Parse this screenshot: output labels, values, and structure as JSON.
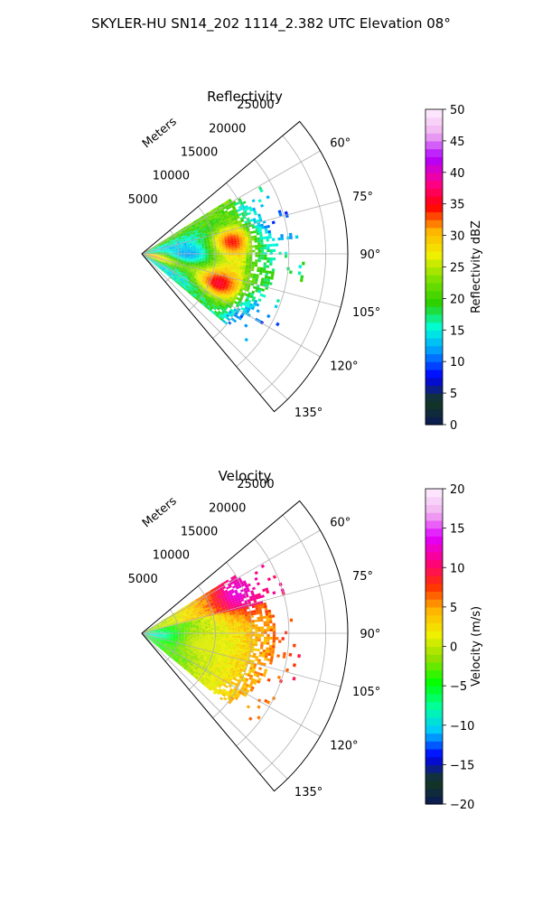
{
  "figure": {
    "title": "SKYLER-HU  SN14_202  1114_2.382 UTC Elevation 08°"
  },
  "chart_data": [
    {
      "type": "heatmap",
      "title": "Reflectivity",
      "projection": "polar-sector",
      "radial_label": "Meters",
      "radial_ticks": [
        5000,
        10000,
        15000,
        20000,
        25000
      ],
      "r_max": 28000,
      "radial_tick_labels": [
        "5000",
        "10000",
        "15000",
        "20000",
        "25000"
      ],
      "angle_range_deg": [
        50,
        140
      ],
      "angle_ticks": [
        60,
        75,
        90,
        105,
        120,
        135
      ],
      "angle_tick_labels": [
        "60°",
        "75°",
        "90°",
        "105°",
        "120°",
        "135°"
      ],
      "grid": true,
      "data_extent": {
        "azimuth_deg": [
          58,
          130
        ],
        "range_m": [
          0,
          18000
        ]
      },
      "field_regions": [
        {
          "azimuth_deg": 82,
          "range_m": 12000,
          "value": 35
        },
        {
          "azimuth_deg": 110,
          "range_m": 11000,
          "value": 36
        },
        {
          "azimuth_deg": 100,
          "range_m": 1500,
          "value": 33
        },
        {
          "azimuth_deg": 90,
          "range_m": 6000,
          "value": 12
        }
      ],
      "colorbar": {
        "label": "Reflectivity dBZ",
        "min": 0,
        "max": 50,
        "ticks": [
          0,
          5,
          10,
          15,
          20,
          25,
          30,
          35,
          40,
          45,
          50
        ],
        "tick_labels": [
          "0",
          "5",
          "10",
          "15",
          "20",
          "25",
          "30",
          "35",
          "40",
          "45",
          "50"
        ],
        "stops": [
          "#0b1a55",
          "#143a1e",
          "#0000ff",
          "#0096ff",
          "#00ffdc",
          "#2ad000",
          "#7fe000",
          "#f0f000",
          "#ffb400",
          "#ff0000",
          "#ff0090",
          "#b000ff",
          "#f0b0f0",
          "#fff0ff"
        ]
      }
    },
    {
      "type": "heatmap",
      "title": "Velocity",
      "projection": "polar-sector",
      "radial_label": "Meters",
      "radial_ticks": [
        5000,
        10000,
        15000,
        20000,
        25000
      ],
      "r_max": 28000,
      "radial_tick_labels": [
        "5000",
        "10000",
        "15000",
        "20000",
        "25000"
      ],
      "angle_range_deg": [
        50,
        140
      ],
      "angle_ticks": [
        60,
        75,
        90,
        105,
        120,
        135
      ],
      "angle_tick_labels": [
        "60°",
        "75°",
        "90°",
        "105°",
        "120°",
        "135°"
      ],
      "grid": true,
      "data_extent": {
        "azimuth_deg": [
          58,
          130
        ],
        "range_m": [
          0,
          18000
        ]
      },
      "field_regions": [
        {
          "azimuth_deg": 66,
          "range_m": 14000,
          "value": 13
        },
        {
          "azimuth_deg": 95,
          "range_m": 1500,
          "value": -9
        },
        {
          "azimuth_deg": 100,
          "range_m": 9000,
          "value": 1
        }
      ],
      "colorbar": {
        "label": "Velocity (m/s)",
        "min": -20,
        "max": 20,
        "ticks": [
          -20,
          -15,
          -10,
          -5,
          0,
          5,
          10,
          15,
          20
        ],
        "tick_labels": [
          "−20",
          "−15",
          "−10",
          "−5",
          "0",
          "5",
          "10",
          "15",
          "20"
        ],
        "stops": [
          "#0b1a55",
          "#143a1e",
          "#0000ff",
          "#00c8ff",
          "#00ffa0",
          "#00ff00",
          "#90e000",
          "#f0f000",
          "#ffb400",
          "#ff3000",
          "#ff0080",
          "#e000ff",
          "#f0b0f0",
          "#fff0ff"
        ]
      }
    }
  ]
}
